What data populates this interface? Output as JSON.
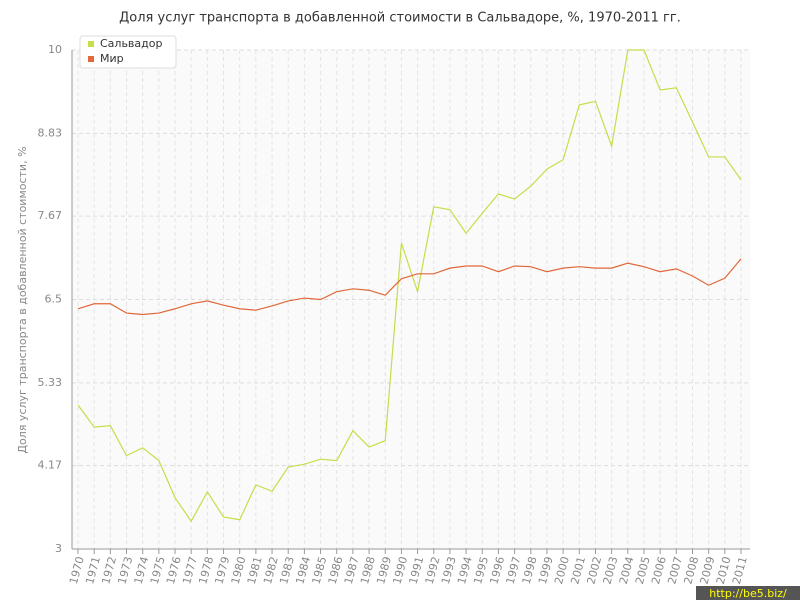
{
  "chart_data": {
    "type": "line",
    "title": "Доля услуг транспорта в добавленной стоимости в Сальвадоре, %, 1970-2011 гг.",
    "y_label": "Доля услуг транспорта в добавленной стоимости, %",
    "categories": [
      "1970",
      "1971",
      "1972",
      "1973",
      "1974",
      "1975",
      "1976",
      "1977",
      "1978",
      "1979",
      "1980",
      "1981",
      "1982",
      "1983",
      "1984",
      "1985",
      "1986",
      "1987",
      "1988",
      "1989",
      "1990",
      "1991",
      "1992",
      "1993",
      "1994",
      "1995",
      "1996",
      "1997",
      "1998",
      "1999",
      "2000",
      "2001",
      "2002",
      "2003",
      "2004",
      "2005",
      "2006",
      "2007",
      "2008",
      "2009",
      "2010",
      "2011"
    ],
    "series": [
      {
        "name": "Сальвадор",
        "color": "#c5de4a",
        "values": [
          5.02,
          4.71,
          4.73,
          4.31,
          4.42,
          4.24,
          3.72,
          3.39,
          3.8,
          3.45,
          3.41,
          3.9,
          3.81,
          4.15,
          4.19,
          4.26,
          4.24,
          4.66,
          4.43,
          4.52,
          7.29,
          6.61,
          7.8,
          7.76,
          7.43,
          7.71,
          7.98,
          7.91,
          8.09,
          8.33,
          8.46,
          9.23,
          9.28,
          8.65,
          10.0,
          10.0,
          9.44,
          9.47,
          8.99,
          8.5,
          8.5,
          8.18
        ]
      },
      {
        "name": "Мир",
        "color": "#e0683a",
        "values": [
          6.37,
          6.44,
          6.44,
          6.31,
          6.29,
          6.31,
          6.37,
          6.44,
          6.48,
          6.42,
          6.37,
          6.35,
          6.41,
          6.48,
          6.52,
          6.5,
          6.61,
          6.65,
          6.63,
          6.56,
          6.79,
          6.86,
          6.86,
          6.94,
          6.97,
          6.97,
          6.89,
          6.97,
          6.96,
          6.89,
          6.94,
          6.96,
          6.94,
          6.94,
          7.01,
          6.96,
          6.89,
          6.93,
          6.83,
          6.7,
          6.8,
          7.07
        ]
      }
    ],
    "ylim": [
      3,
      10
    ],
    "yticks": [
      3,
      4.17,
      5.33,
      6.5,
      7.67,
      8.83,
      10
    ],
    "grid": true,
    "legend": "top-left",
    "watermark": "http://be5.biz/"
  }
}
